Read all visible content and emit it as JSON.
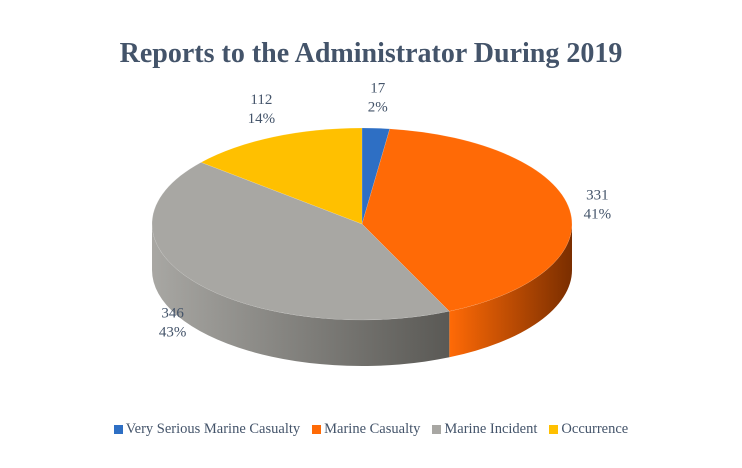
{
  "chart_data": {
    "type": "pie",
    "title": "Reports to the Administrator During 2019",
    "categories": [
      "Very Serious Marine Casualty",
      "Marine Casualty",
      "Marine Incident",
      "Occurrence"
    ],
    "values": [
      17,
      331,
      346,
      112
    ],
    "percent_labels": [
      "2%",
      "41%",
      "43%",
      "14%"
    ],
    "value_labels": [
      "17",
      "331",
      "346",
      "112"
    ],
    "colors": [
      "#2e6fc4",
      "#ff6a06",
      "#a8a7a3",
      "#ffc000"
    ],
    "side_colors": [
      "#1b447a",
      "#7a2e00",
      "#5a5955",
      "#8a6800"
    ],
    "legend_position": "bottom",
    "style": "3d"
  }
}
